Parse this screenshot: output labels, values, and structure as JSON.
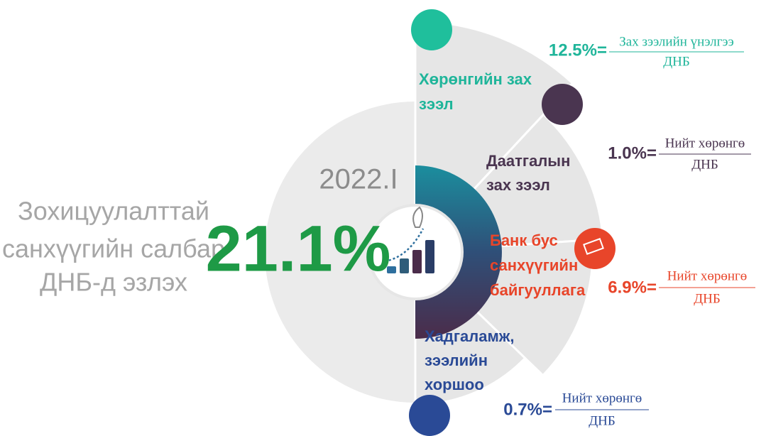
{
  "title_lines": [
    "Зохицуулалттай",
    "санхүүгийн салбар",
    "ДНБ-д эзлэх"
  ],
  "period": "2022.I",
  "total": "21.1%",
  "segments": [
    {
      "label_lines": [
        "Хөрөнгийн зах",
        "зээл"
      ],
      "formula_value": "12.5%=",
      "numerator": "Зах зээлийн үнэлгээ",
      "denominator": "ДНБ"
    },
    {
      "label_lines": [
        "Даатгалын",
        "зах зээл"
      ],
      "formula_value": "1.0%=",
      "numerator": "Нийт хөрөнгө",
      "denominator": "ДНБ"
    },
    {
      "label_lines": [
        "Банк бус",
        "санхүүгийн",
        "байгууллага"
      ],
      "formula_value": "6.9%=",
      "numerator": "Нийт хөрөнгө",
      "denominator": "ДНБ"
    },
    {
      "label_lines": [
        "Хадгаламж,",
        "зээлийн",
        "хоршоо"
      ],
      "formula_value": "0.7%=",
      "numerator": "Нийт хөрөнгө",
      "denominator": "ДНБ"
    }
  ]
}
